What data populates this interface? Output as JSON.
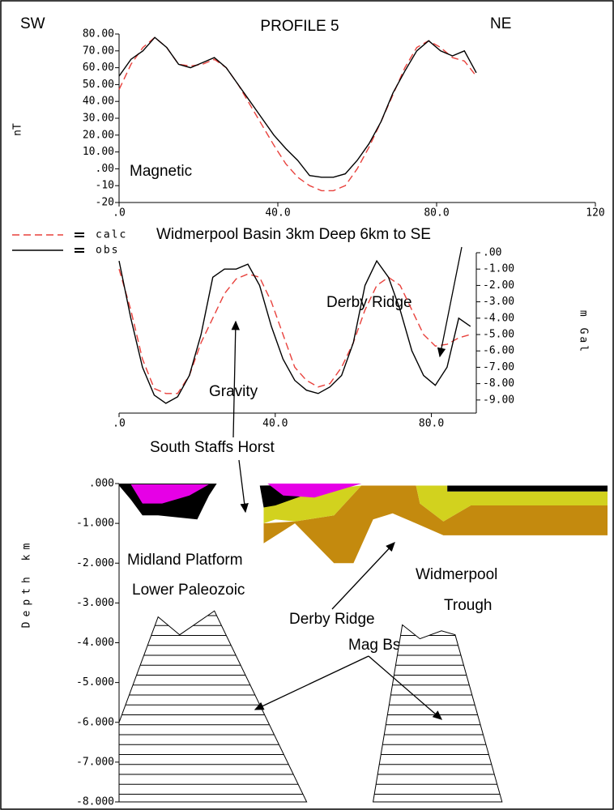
{
  "chart_data": [
    {
      "type": "line",
      "title": "PROFILE 5",
      "left_label": "SW",
      "right_label": "NE",
      "ylabel": "nT",
      "annotations": [
        "Magnetic"
      ],
      "xlim": [
        0,
        120
      ],
      "xticks": [
        {
          "value": 0,
          "label": ".0"
        },
        {
          "value": 40,
          "label": "40.0"
        },
        {
          "value": 80,
          "label": "80.0"
        },
        120
      ],
      "ylim": [
        -20,
        80
      ],
      "yticks": [
        {
          "value": 80,
          "label": "80.00"
        },
        {
          "value": 70,
          "label": "70.00"
        },
        {
          "value": 60,
          "label": "60.00"
        },
        {
          "value": 50,
          "label": "50.00"
        },
        {
          "value": 40,
          "label": "40.00"
        },
        {
          "value": 30,
          "label": "30.00"
        },
        {
          "value": 20,
          "label": "20.00"
        },
        {
          "value": 10,
          "label": "10.00"
        },
        {
          "value": 0,
          "label": ".00"
        },
        -10,
        -20
      ],
      "legend": "lower left",
      "x": [
        0,
        3,
        6,
        9,
        12,
        15,
        18,
        21,
        24,
        27,
        30,
        33,
        36,
        39,
        42,
        45,
        48,
        51,
        54,
        57,
        60,
        63,
        66,
        69,
        72,
        75,
        78,
        81,
        84,
        87,
        90
      ],
      "series": [
        {
          "name": "calc",
          "color": "#e8413c",
          "dash": true,
          "values": [
            47,
            62,
            72,
            78,
            72,
            62,
            61,
            62,
            65,
            60,
            50,
            38,
            26,
            14,
            3,
            -5,
            -10,
            -13,
            -13,
            -10,
            0,
            13,
            28,
            44,
            60,
            72,
            76,
            72,
            66,
            64,
            55
          ]
        },
        {
          "name": "obs",
          "color": "#000000",
          "values": [
            55,
            65,
            70,
            78,
            72,
            62,
            60,
            63,
            66,
            60,
            50,
            40,
            30,
            20,
            12,
            5,
            -4,
            -5,
            -5,
            -3,
            5,
            15,
            28,
            45,
            58,
            70,
            76,
            70,
            67,
            70,
            57
          ]
        }
      ]
    },
    {
      "type": "line",
      "ylabel": "m Gal",
      "yaxis": "right",
      "annotations": [
        "Widmerpool Basin 3km Deep 6km to SE",
        "Derby Ridge",
        "Gravity",
        "South Staffs Horst"
      ],
      "xlim": [
        0,
        91.5
      ],
      "xticks": [
        {
          "value": 0,
          "label": ".0"
        },
        {
          "value": 40,
          "label": "40.0"
        },
        {
          "value": 80,
          "label": "80.0"
        }
      ],
      "ylim": [
        -9.8,
        0
      ],
      "yticks": [
        {
          "value": 0,
          "label": ".00"
        },
        {
          "value": -1,
          "label": "-1.00"
        },
        {
          "value": -2,
          "label": "-2.00"
        },
        {
          "value": -3,
          "label": "-3.00"
        },
        {
          "value": -4,
          "label": "-4.00"
        },
        {
          "value": -5,
          "label": "-5.00"
        },
        {
          "value": -6,
          "label": "-6.00"
        },
        {
          "value": -7,
          "label": "-7.00"
        },
        {
          "value": -8,
          "label": "-8.00"
        },
        {
          "value": -9,
          "label": "-9.00"
        }
      ],
      "x": [
        0,
        3,
        6,
        9,
        12,
        15,
        18,
        21,
        24,
        27,
        30,
        33,
        36,
        39,
        42,
        45,
        48,
        51,
        54,
        57,
        60,
        63,
        66,
        69,
        72,
        75,
        78,
        81,
        84,
        87,
        90
      ],
      "series": [
        {
          "color": "#e8413c",
          "dash": true,
          "values": [
            -1.0,
            -3.5,
            -6.5,
            -8.3,
            -8.6,
            -8.6,
            -7.5,
            -5.5,
            -4,
            -2.5,
            -1.6,
            -1.3,
            -1.5,
            -3,
            -5,
            -7,
            -7.8,
            -8.2,
            -8,
            -7,
            -5.5,
            -3.5,
            -2,
            -1.5,
            -2,
            -3.5,
            -5,
            -5.7,
            -5.6,
            -5.2,
            -5.0
          ]
        },
        {
          "color": "#000000",
          "values": [
            -0.5,
            -4,
            -7,
            -8.7,
            -9.2,
            -8.8,
            -7.5,
            -5,
            -1.5,
            -1.0,
            -1.0,
            -0.7,
            -2,
            -4.5,
            -6.5,
            -7.8,
            -8.4,
            -8.6,
            -8.2,
            -7.5,
            -5.5,
            -2,
            -0.5,
            -1.5,
            -3.5,
            -6,
            -7.5,
            -8.1,
            -7,
            -4,
            -4.5
          ]
        }
      ]
    },
    {
      "type": "section",
      "ylabel": "Depth km",
      "annotations": [
        "Midland Platform",
        "Lower Paleozoic",
        "Derby Ridge",
        "Widmerpool",
        "Trough",
        "Mag Bsmnt"
      ],
      "xlim": [
        0,
        125
      ],
      "ylim": [
        -8,
        0
      ],
      "yticks": [
        {
          "value": 0,
          "label": ".000"
        },
        {
          "value": -1,
          "label": "-1.000"
        },
        {
          "value": -2,
          "label": "-2.000"
        },
        {
          "value": -3,
          "label": "-3.000"
        },
        {
          "value": -4,
          "label": "-4.000"
        },
        {
          "value": -5,
          "label": "-5.000"
        },
        {
          "value": -6,
          "label": "-6.000"
        },
        {
          "value": -7,
          "label": "-7.000"
        },
        {
          "value": -8,
          "label": "-8.000"
        }
      ],
      "layers": [
        {
          "color": "#c48a0e",
          "x": [
            37,
            45,
            55,
            62,
            76,
            77,
            83,
            90,
            125,
            125,
            83,
            76,
            70,
            65,
            60,
            55,
            45,
            37
          ],
          "depth": [
            -1.0,
            -0.95,
            -0.8,
            -0.05,
            -0.05,
            -0.5,
            -0.95,
            -0.55,
            -0.55,
            -1.3,
            -1.3,
            -1.0,
            -0.75,
            -0.9,
            -2.0,
            -2.0,
            -1.0,
            -1.5
          ]
        },
        {
          "color": "#d2d21e",
          "x": [
            37,
            47,
            62,
            55,
            45,
            40,
            37
          ],
          "depth": [
            -0.3,
            -0.2,
            -0.05,
            -0.8,
            -0.95,
            -0.9,
            -1.0
          ]
        },
        {
          "color": "#d2d21e",
          "x": [
            76,
            84,
            84,
            125,
            125,
            90,
            83,
            77
          ],
          "depth": [
            -0.05,
            -0.05,
            -0.2,
            -0.2,
            -0.55,
            -0.55,
            -0.95,
            -0.5
          ]
        },
        {
          "color": "#000000",
          "x": [
            0,
            25,
            23,
            20,
            10,
            6,
            3,
            0
          ],
          "depth": [
            0,
            0,
            -0.3,
            -0.9,
            -0.8,
            -0.8,
            -0.4,
            -0.05
          ]
        },
        {
          "color": "#000000",
          "x": [
            36,
            62,
            50,
            40,
            37
          ],
          "depth": [
            -0.05,
            0,
            -0.2,
            -0.55,
            -0.6
          ]
        },
        {
          "color": "#000000",
          "x": [
            84,
            125,
            125,
            84
          ],
          "depth": [
            -0.05,
            -0.05,
            -0.2,
            -0.2
          ]
        },
        {
          "color": "#e600e6",
          "x": [
            3,
            23,
            18,
            11,
            6
          ],
          "depth": [
            -0.02,
            -0.02,
            -0.3,
            -0.5,
            -0.5
          ]
        },
        {
          "color": "#e600e6",
          "x": [
            38,
            62,
            50,
            42
          ],
          "depth": [
            0,
            0,
            -0.35,
            -0.3
          ]
        },
        {
          "color": "#000000",
          "hatch": true,
          "x": [
            0,
            0,
            10,
            15.5,
            24.4,
            48
          ],
          "depth": [
            -8,
            -6,
            -3.35,
            -3.8,
            -3.2,
            -8
          ]
        },
        {
          "color": "#000000",
          "hatch": true,
          "x": [
            65,
            72.5,
            77,
            82.5,
            86,
            98
          ],
          "depth": [
            -8,
            -3.55,
            -3.9,
            -3.7,
            -3.8,
            -8
          ]
        }
      ]
    }
  ]
}
